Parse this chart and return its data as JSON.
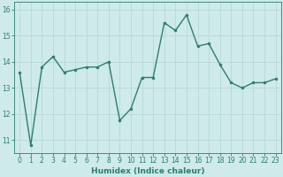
{
  "x": [
    0,
    1,
    2,
    3,
    4,
    5,
    6,
    7,
    8,
    9,
    10,
    11,
    12,
    13,
    14,
    15,
    16,
    17,
    18,
    19,
    20,
    21,
    22,
    23
  ],
  "y": [
    13.6,
    10.8,
    13.8,
    14.2,
    13.6,
    13.7,
    13.8,
    13.8,
    14.0,
    11.75,
    12.2,
    13.4,
    13.4,
    15.5,
    15.2,
    15.8,
    14.6,
    14.7,
    13.9,
    13.2,
    13.0,
    13.2,
    13.2,
    13.35
  ],
  "line_color": "#2e7d6e",
  "marker": "o",
  "markersize": 2.0,
  "linewidth": 1.0,
  "xlabel": "Humidex (Indice chaleur)",
  "ylim": [
    10.5,
    16.3
  ],
  "xlim": [
    -0.5,
    23.5
  ],
  "yticks": [
    11,
    12,
    13,
    14,
    15,
    16
  ],
  "xticks": [
    0,
    1,
    2,
    3,
    4,
    5,
    6,
    7,
    8,
    9,
    10,
    11,
    12,
    13,
    14,
    15,
    16,
    17,
    18,
    19,
    20,
    21,
    22,
    23
  ],
  "bg_color": "#ceeaea",
  "grid_color": "#b8d8d8",
  "tick_color": "#2e7d6e",
  "label_color": "#2e7d6e",
  "xlabel_fontsize": 6.5,
  "tick_fontsize": 5.5
}
